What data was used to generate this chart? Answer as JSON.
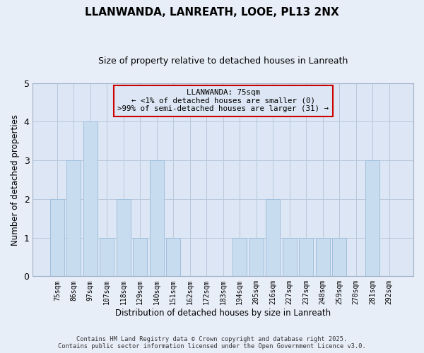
{
  "title": "LLANWANDA, LANREATH, LOOE, PL13 2NX",
  "subtitle": "Size of property relative to detached houses in Lanreath",
  "xlabel": "Distribution of detached houses by size in Lanreath",
  "ylabel": "Number of detached properties",
  "categories": [
    "75sqm",
    "86sqm",
    "97sqm",
    "107sqm",
    "118sqm",
    "129sqm",
    "140sqm",
    "151sqm",
    "162sqm",
    "172sqm",
    "183sqm",
    "194sqm",
    "205sqm",
    "216sqm",
    "227sqm",
    "237sqm",
    "248sqm",
    "259sqm",
    "270sqm",
    "281sqm",
    "292sqm"
  ],
  "values": [
    2,
    3,
    4,
    1,
    2,
    1,
    3,
    1,
    0,
    0,
    0,
    1,
    1,
    2,
    1,
    1,
    1,
    1,
    0,
    3,
    0
  ],
  "bar_color": "#c8dcf0",
  "bar_edge_color": "#a0c0dc",
  "annotation_title": "LLANWANDA: 75sqm",
  "annotation_line1": "← <1% of detached houses are smaller (0)",
  "annotation_line2": ">99% of semi-detached houses are larger (31) →",
  "ylim": [
    0,
    5
  ],
  "yticks": [
    0,
    1,
    2,
    3,
    4,
    5
  ],
  "footer_line1": "Contains HM Land Registry data © Crown copyright and database right 2025.",
  "footer_line2": "Contains public sector information licensed under the Open Government Licence v3.0.",
  "background_color": "#e8eef8",
  "plot_bg_color": "#dce6f4",
  "grid_color": "#b8c8dc",
  "ann_bg_color": "#dce6f4",
  "ann_edge_color": "#cc0000",
  "title_fontsize": 11,
  "subtitle_fontsize": 9
}
